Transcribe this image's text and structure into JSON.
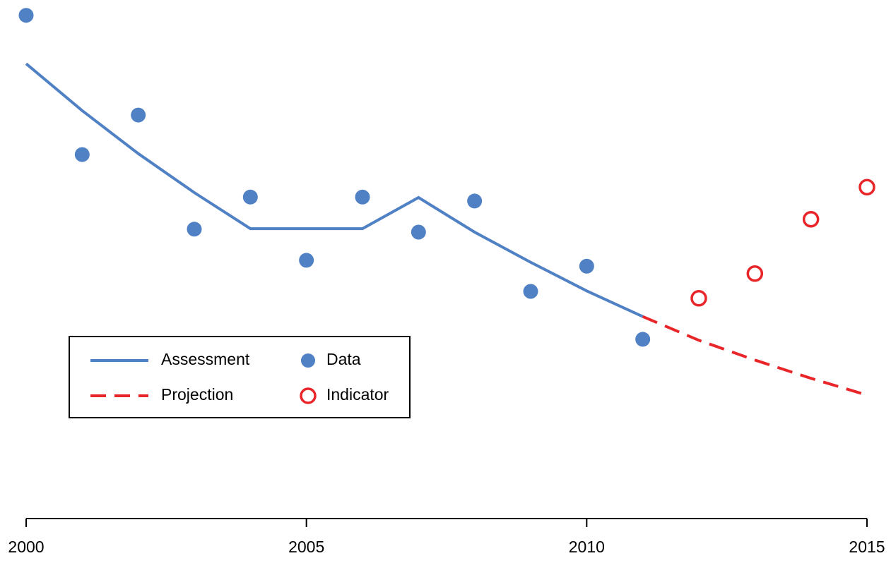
{
  "chart_data": {
    "type": "line",
    "x": [
      2000,
      2001,
      2002,
      2003,
      2004,
      2005,
      2006,
      2007,
      2008,
      2009,
      2010,
      2011,
      2012,
      2013,
      2014,
      2015
    ],
    "xlim": [
      2000,
      2015
    ],
    "xticks": [
      2000,
      2005,
      2010,
      2015
    ],
    "ylim": [
      0,
      100
    ],
    "legend": "bottom-left",
    "series": [
      {
        "name": "Assessment",
        "color": "#4f81c4",
        "style": "solid",
        "values": [
          87.1,
          77.6,
          68.9,
          61,
          53.7,
          53.7,
          53.7,
          60,
          53,
          46.9,
          41.1,
          35.9,
          null,
          null,
          null,
          null
        ]
      },
      {
        "name": "Projection",
        "color": "#e8262a",
        "style": "dashed",
        "values": [
          null,
          null,
          null,
          null,
          null,
          null,
          null,
          null,
          null,
          null,
          null,
          35.9,
          31.1,
          27.1,
          23.4,
          20
        ]
      },
      {
        "name": "Data",
        "color": "#4f81c4",
        "style": "filled-points",
        "values": [
          96.9,
          68.7,
          76.7,
          53.6,
          60.1,
          47.3,
          60.1,
          53,
          59.3,
          41,
          46.1,
          31.3,
          null,
          null,
          null,
          null
        ]
      },
      {
        "name": "Indicator",
        "color": "#e8262a",
        "style": "open-points",
        "values": [
          null,
          null,
          null,
          null,
          null,
          null,
          null,
          null,
          null,
          null,
          null,
          null,
          39.6,
          44.6,
          55.6,
          62.1
        ]
      }
    ]
  }
}
